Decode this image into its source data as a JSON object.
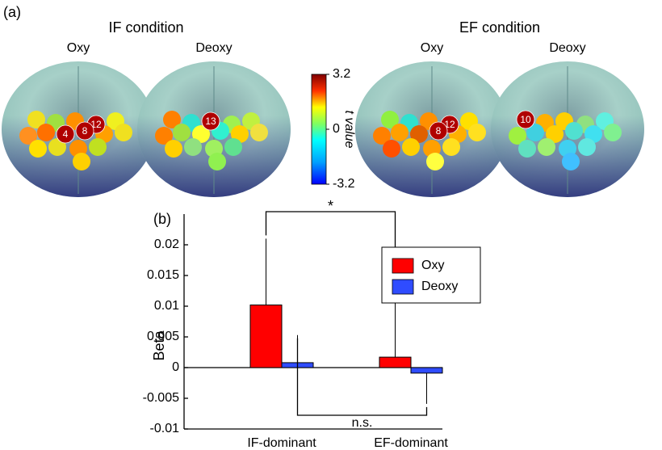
{
  "panel_a": {
    "label": "(a)",
    "conditions": [
      {
        "title": "IF condition",
        "maps": [
          {
            "title": "Oxy",
            "channels": [
              12,
              8,
              4
            ]
          },
          {
            "title": "Deoxy",
            "channels": [
              13
            ]
          }
        ]
      },
      {
        "title": "EF condition",
        "maps": [
          {
            "title": "Oxy",
            "channels": [
              12,
              8
            ]
          },
          {
            "title": "Deoxy",
            "channels": [
              10
            ]
          }
        ]
      }
    ],
    "colorbar": {
      "lim": [
        -3.2,
        3.2
      ],
      "ticks": [
        -3.2,
        0,
        3.2
      ],
      "label": "t value"
    }
  },
  "chart_data": {
    "type": "bar",
    "label": "(b)",
    "y_label": "Beta",
    "categories": [
      "IF-dominant",
      "EF-dominant"
    ],
    "series": [
      {
        "name": "Oxy",
        "color": "#ff0000",
        "values": [
          0.0102,
          0.0017
        ],
        "errors": [
          0.0108,
          0.0099
        ]
      },
      {
        "name": "Deoxy",
        "color": "#2f4cff",
        "values": [
          0.0008,
          -0.0009
        ],
        "errors": [
          0.0045,
          0.005
        ]
      }
    ],
    "ylim": [
      -0.01,
      0.025
    ],
    "yticks": [
      -0.01,
      -0.005,
      0,
      0.005,
      0.01,
      0.015,
      0.02
    ],
    "annotations": [
      "*",
      "n.s."
    ]
  }
}
